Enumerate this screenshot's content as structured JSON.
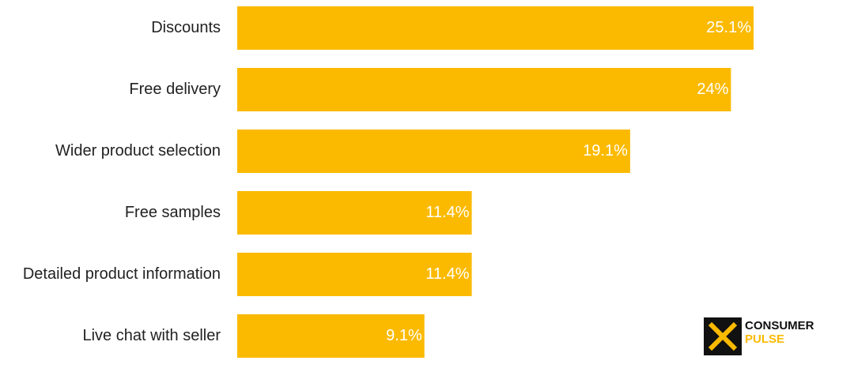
{
  "chart_data": {
    "type": "bar",
    "orientation": "horizontal",
    "categories": [
      "Discounts",
      "Free delivery",
      "Wider product selection",
      "Free samples",
      "Detailed product information",
      "Live chat with seller"
    ],
    "values": [
      25.1,
      24,
      19.1,
      11.4,
      11.4,
      9.1
    ],
    "value_labels": [
      "25.1%",
      "24%",
      "19.1%",
      "11.4%",
      "11.4%",
      "9.1%"
    ],
    "color": "#fbba00"
  },
  "logo": {
    "line1": "CONSUMER",
    "line2": "PULSE"
  }
}
